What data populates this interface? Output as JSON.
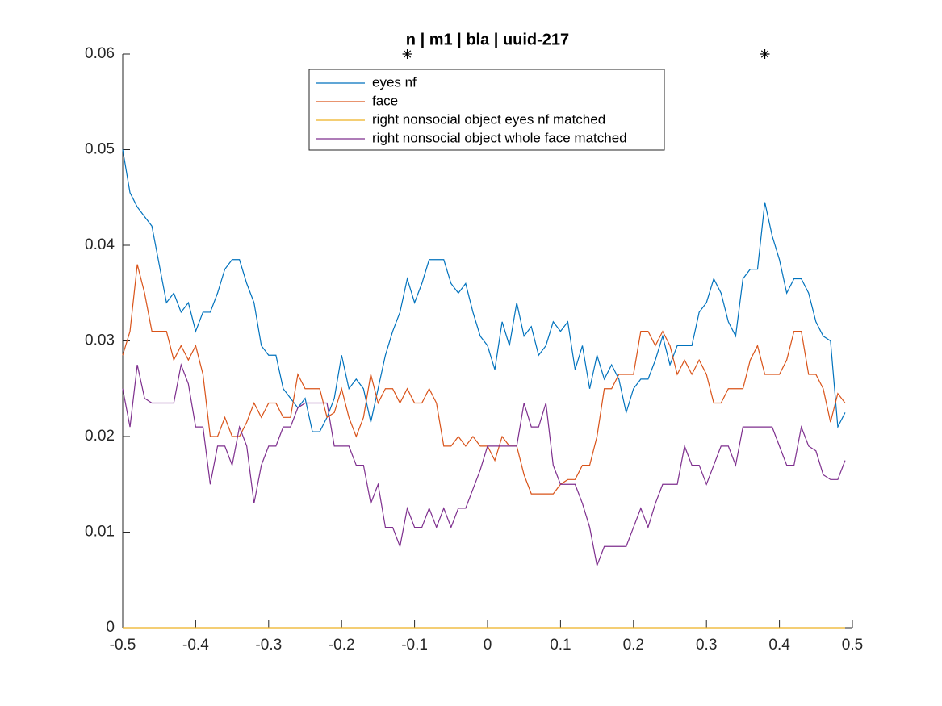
{
  "chart_data": {
    "type": "line",
    "title": "n | m1 | bla | uuid-217",
    "x": [
      -0.5,
      -0.49,
      -0.48,
      -0.47,
      -0.46,
      -0.45,
      -0.44,
      -0.43,
      -0.42,
      -0.41,
      -0.4,
      -0.39,
      -0.38,
      -0.37,
      -0.36,
      -0.35,
      -0.34,
      -0.33,
      -0.32,
      -0.31,
      -0.3,
      -0.29,
      -0.28,
      -0.27,
      -0.26,
      -0.25,
      -0.24,
      -0.23,
      -0.22,
      -0.21,
      -0.2,
      -0.19,
      -0.18,
      -0.17,
      -0.16,
      -0.15,
      -0.14,
      -0.13,
      -0.12,
      -0.11,
      -0.1,
      -0.09,
      -0.08,
      -0.07,
      -0.06,
      -0.05,
      -0.04,
      -0.03,
      -0.02,
      -0.01,
      0,
      0.01,
      0.02,
      0.03,
      0.04,
      0.05,
      0.06,
      0.07,
      0.08,
      0.09,
      0.1,
      0.11,
      0.12,
      0.13,
      0.14,
      0.15,
      0.16,
      0.17,
      0.18,
      0.19,
      0.2,
      0.21,
      0.22,
      0.23,
      0.24,
      0.25,
      0.26,
      0.27,
      0.28,
      0.29,
      0.3,
      0.31,
      0.32,
      0.33,
      0.34,
      0.35,
      0.36,
      0.37,
      0.38,
      0.39,
      0.4,
      0.41,
      0.42,
      0.43,
      0.44,
      0.45,
      0.46,
      0.47,
      0.48,
      0.49
    ],
    "series": [
      {
        "name": "eyes nf",
        "color": "#0072bd",
        "values": [
          0.05,
          0.0455,
          0.044,
          0.043,
          0.042,
          0.038,
          0.034,
          0.035,
          0.033,
          0.034,
          0.031,
          0.033,
          0.033,
          0.035,
          0.0375,
          0.0385,
          0.0385,
          0.036,
          0.034,
          0.0295,
          0.0285,
          0.0285,
          0.025,
          0.024,
          0.023,
          0.024,
          0.0205,
          0.0205,
          0.022,
          0.024,
          0.0285,
          0.025,
          0.026,
          0.025,
          0.0215,
          0.025,
          0.0285,
          0.031,
          0.033,
          0.0365,
          0.034,
          0.036,
          0.0385,
          0.0385,
          0.0385,
          0.036,
          0.035,
          0.036,
          0.033,
          0.0305,
          0.0295,
          0.027,
          0.032,
          0.0295,
          0.034,
          0.0305,
          0.0315,
          0.0285,
          0.0295,
          0.032,
          0.031,
          0.032,
          0.027,
          0.0295,
          0.025,
          0.0285,
          0.026,
          0.0275,
          0.026,
          0.0225,
          0.025,
          0.026,
          0.026,
          0.028,
          0.0305,
          0.0275,
          0.0295,
          0.0295,
          0.0295,
          0.033,
          0.034,
          0.0365,
          0.035,
          0.032,
          0.0305,
          0.0365,
          0.0375,
          0.0375,
          0.0445,
          0.041,
          0.0385,
          0.035,
          0.0365,
          0.0365,
          0.035,
          0.032,
          0.0305,
          0.03,
          0.021,
          0.0225
        ]
      },
      {
        "name": "face",
        "color": "#d95319",
        "values": [
          0.0285,
          0.031,
          0.038,
          0.035,
          0.031,
          0.031,
          0.031,
          0.028,
          0.0295,
          0.028,
          0.0295,
          0.0265,
          0.02,
          0.02,
          0.022,
          0.02,
          0.02,
          0.0215,
          0.0235,
          0.022,
          0.0235,
          0.0235,
          0.022,
          0.022,
          0.0265,
          0.025,
          0.025,
          0.025,
          0.022,
          0.0225,
          0.025,
          0.022,
          0.02,
          0.022,
          0.0265,
          0.0235,
          0.025,
          0.025,
          0.0235,
          0.025,
          0.0235,
          0.0235,
          0.025,
          0.0235,
          0.019,
          0.019,
          0.02,
          0.019,
          0.02,
          0.019,
          0.019,
          0.0175,
          0.02,
          0.019,
          0.019,
          0.016,
          0.014,
          0.014,
          0.014,
          0.014,
          0.015,
          0.0155,
          0.0155,
          0.017,
          0.017,
          0.02,
          0.025,
          0.025,
          0.0265,
          0.0265,
          0.0265,
          0.031,
          0.031,
          0.0295,
          0.031,
          0.0295,
          0.0265,
          0.028,
          0.0265,
          0.028,
          0.0265,
          0.0235,
          0.0235,
          0.025,
          0.025,
          0.025,
          0.028,
          0.0295,
          0.0265,
          0.0265,
          0.0265,
          0.028,
          0.031,
          0.031,
          0.0265,
          0.0265,
          0.025,
          0.0215,
          0.0245,
          0.0235
        ]
      },
      {
        "name": "right nonsocial object eyes nf matched",
        "color": "#edb120",
        "values": [
          0,
          0,
          0,
          0,
          0,
          0,
          0,
          0,
          0,
          0,
          0,
          0,
          0,
          0,
          0,
          0,
          0,
          0,
          0,
          0,
          0,
          0,
          0,
          0,
          0,
          0,
          0,
          0,
          0,
          0,
          0,
          0,
          0,
          0,
          0,
          0,
          0,
          0,
          0,
          0,
          0,
          0,
          0,
          0,
          0,
          0,
          0,
          0,
          0,
          0,
          0,
          0,
          0,
          0,
          0,
          0,
          0,
          0,
          0,
          0,
          0,
          0,
          0,
          0,
          0,
          0,
          0,
          0,
          0,
          0,
          0,
          0,
          0,
          0,
          0,
          0,
          0,
          0,
          0,
          0,
          0,
          0,
          0,
          0,
          0,
          0,
          0,
          0,
          0,
          0,
          0,
          0,
          0,
          0,
          0,
          0,
          0,
          0,
          0,
          0
        ]
      },
      {
        "name": "right nonsocial object whole face matched",
        "color": "#7e2f8e",
        "values": [
          0.025,
          0.021,
          0.0275,
          0.024,
          0.0235,
          0.0235,
          0.0235,
          0.0235,
          0.0275,
          0.0255,
          0.021,
          0.021,
          0.015,
          0.019,
          0.019,
          0.017,
          0.021,
          0.019,
          0.013,
          0.017,
          0.019,
          0.019,
          0.021,
          0.021,
          0.023,
          0.0235,
          0.0235,
          0.0235,
          0.0235,
          0.019,
          0.019,
          0.019,
          0.017,
          0.017,
          0.013,
          0.015,
          0.0105,
          0.0105,
          0.0085,
          0.0125,
          0.0105,
          0.0105,
          0.0125,
          0.0105,
          0.0125,
          0.0105,
          0.0125,
          0.0125,
          0.0145,
          0.0165,
          0.019,
          0.019,
          0.019,
          0.019,
          0.019,
          0.0235,
          0.021,
          0.021,
          0.0235,
          0.017,
          0.015,
          0.015,
          0.015,
          0.013,
          0.0105,
          0.0065,
          0.0085,
          0.0085,
          0.0085,
          0.0085,
          0.0105,
          0.0125,
          0.0105,
          0.013,
          0.015,
          0.015,
          0.015,
          0.019,
          0.017,
          0.017,
          0.015,
          0.017,
          0.019,
          0.019,
          0.017,
          0.021,
          0.021,
          0.021,
          0.021,
          0.021,
          0.019,
          0.017,
          0.017,
          0.021,
          0.019,
          0.0185,
          0.016,
          0.0155,
          0.0155,
          0.0175
        ]
      }
    ],
    "markers": {
      "x": [
        -0.11,
        0.38
      ],
      "values": [
        0.06,
        0.06
      ],
      "color": "#000000"
    },
    "xlim": [
      -0.5,
      0.5
    ],
    "xticks": [
      -0.5,
      -0.4,
      -0.3,
      -0.2,
      -0.1,
      0,
      0.1,
      0.2,
      0.3,
      0.4,
      0.5
    ],
    "ylim": [
      0,
      0.06
    ],
    "yticks": [
      0,
      0.01,
      0.02,
      0.03,
      0.04,
      0.05,
      0.06
    ],
    "legend": "north",
    "grid": false
  }
}
